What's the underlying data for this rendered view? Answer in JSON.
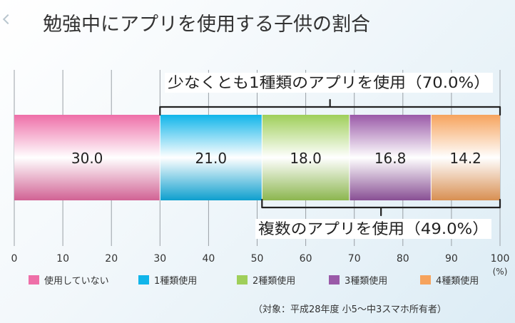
{
  "page": {
    "title": "勉強中にアプリを使用する子供の割合"
  },
  "chart_data": {
    "type": "bar",
    "orientation": "horizontal-stacked",
    "title": "勉強中にアプリを使用する子供の割合",
    "categories": [
      "使用していない",
      "1種類使用",
      "2種類使用",
      "3種類使用",
      "4種類使用"
    ],
    "values": [
      30.0,
      21.0,
      18.0,
      16.8,
      14.2
    ],
    "value_labels": [
      "30.0",
      "21.0",
      "18.0",
      "16.8",
      "14.2"
    ],
    "colors": [
      "#ee6fa8",
      "#10b5ea",
      "#9fcf5a",
      "#9a5aa8",
      "#f6a35d"
    ],
    "xlim": [
      0,
      100
    ],
    "xticks": [
      0,
      10,
      20,
      30,
      40,
      50,
      60,
      70,
      80,
      90,
      100
    ],
    "xtick_labels": [
      "0",
      "10",
      "20",
      "30",
      "40",
      "50",
      "60",
      "70",
      "80",
      "90",
      "100"
    ],
    "unit": "(%)",
    "grid": true,
    "legend_position": "bottom",
    "annotations": [
      {
        "text": "少なくとも1種類のアプリを使用（70.0%）",
        "from": 30,
        "to": 100,
        "position": "above"
      },
      {
        "text": "複数のアプリを使用（49.0%）",
        "from": 51,
        "to": 100,
        "position": "below"
      }
    ],
    "footnote": "（対象：平成28年度 小5〜中3スマホ所有者）"
  }
}
